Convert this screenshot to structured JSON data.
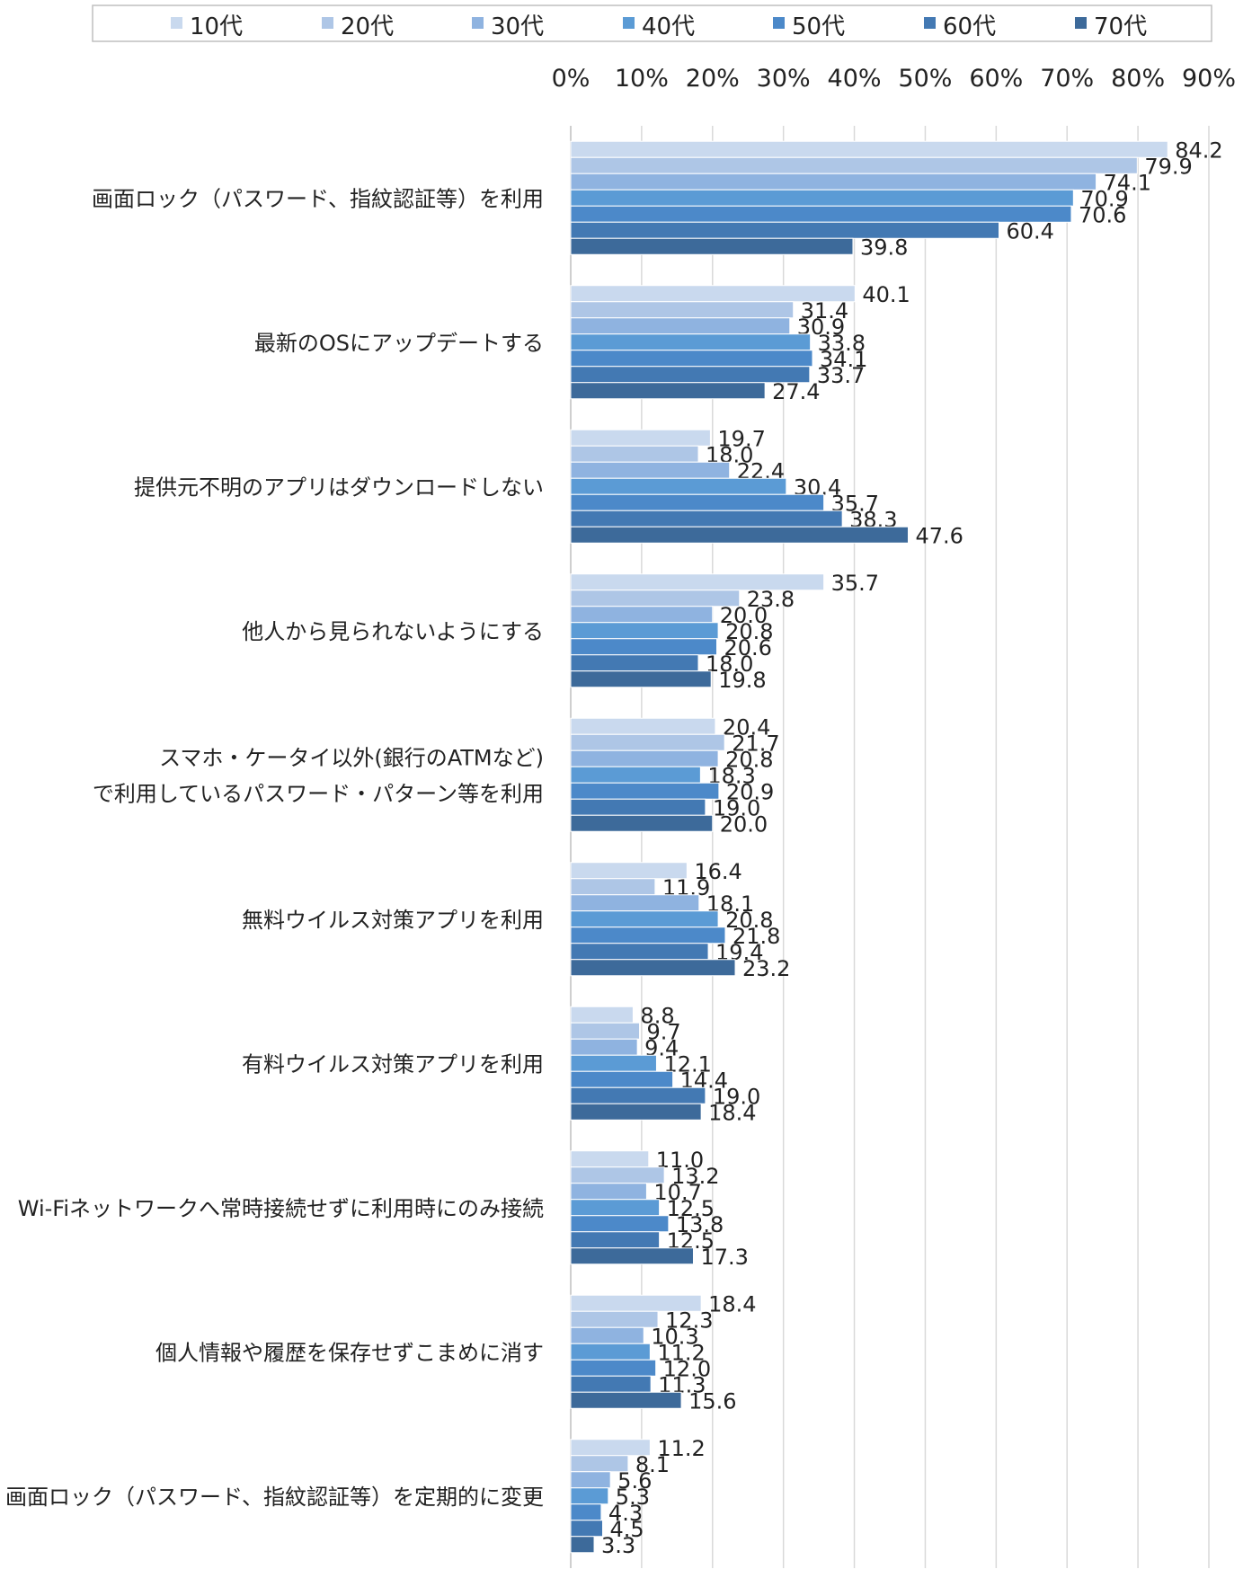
{
  "chart_data": {
    "type": "bar",
    "orientation": "horizontal",
    "categories": [
      [
        "画面ロック（パスワード、指紋認証等）を利用"
      ],
      [
        "最新のOSにアップデートする"
      ],
      [
        "提供元不明のアプリはダウンロードしない"
      ],
      [
        "他人から見られないようにする"
      ],
      [
        "スマホ・ケータイ以外(銀行のATMなど)",
        "で利用しているパスワード・パターン等を利用"
      ],
      [
        "無料ウイルス対策アプリを利用"
      ],
      [
        "有料ウイルス対策アプリを利用"
      ],
      [
        "Wi-Fiネットワークへ常時接続せずに利用時にのみ接続"
      ],
      [
        "個人情報や履歴を保存せずこまめに消す"
      ],
      [
        "画面ロック（パスワード、指紋認証等）を定期的に変更"
      ]
    ],
    "series": [
      {
        "name": "10代",
        "color": "#c9d9ee",
        "values": [
          84.2,
          40.1,
          19.7,
          35.7,
          20.4,
          16.4,
          8.8,
          11.0,
          18.4,
          11.2
        ]
      },
      {
        "name": "20代",
        "color": "#aec6e6",
        "values": [
          79.9,
          31.4,
          18.0,
          23.8,
          21.7,
          11.9,
          9.7,
          13.2,
          12.3,
          8.1
        ]
      },
      {
        "name": "30代",
        "color": "#8fb3e0",
        "values": [
          74.1,
          30.9,
          22.4,
          20.0,
          20.8,
          18.1,
          9.4,
          10.7,
          10.3,
          5.6
        ]
      },
      {
        "name": "40代",
        "color": "#5b9bd5",
        "values": [
          70.9,
          33.8,
          30.4,
          20.8,
          18.3,
          20.8,
          12.1,
          12.5,
          11.2,
          5.3
        ]
      },
      {
        "name": "50代",
        "color": "#4c89c9",
        "values": [
          70.6,
          34.1,
          35.7,
          20.6,
          20.9,
          21.8,
          14.4,
          13.8,
          12.0,
          4.3
        ]
      },
      {
        "name": "60代",
        "color": "#4379b3",
        "values": [
          60.4,
          33.7,
          38.3,
          18.0,
          19.0,
          19.4,
          19.0,
          12.5,
          11.3,
          4.5
        ]
      },
      {
        "name": "70代",
        "color": "#3d6a9a",
        "values": [
          39.8,
          27.4,
          47.6,
          19.8,
          20.0,
          23.2,
          18.4,
          17.3,
          15.6,
          3.3
        ]
      }
    ],
    "x_ticks": [
      "0%",
      "10%",
      "20%",
      "30%",
      "40%",
      "50%",
      "60%",
      "70%",
      "80%",
      "90%"
    ],
    "xlim": [
      0,
      90
    ],
    "grid": true,
    "legend": "top"
  }
}
